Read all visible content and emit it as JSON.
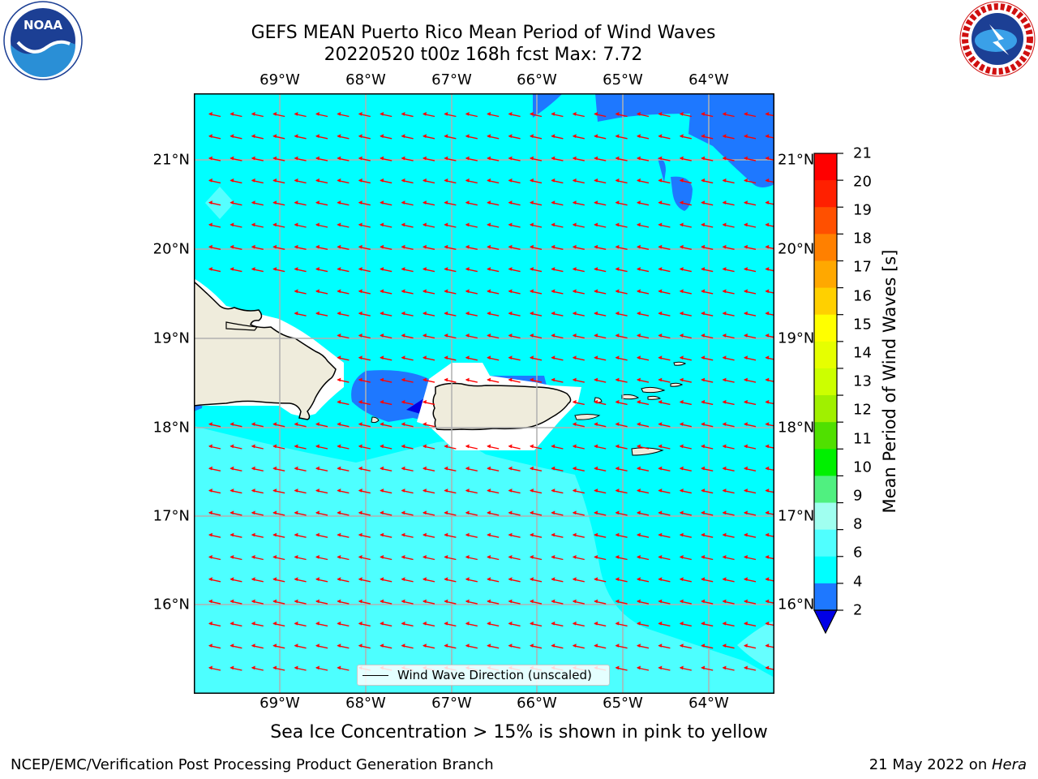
{
  "title": {
    "line1": "GEFS MEAN Puerto Rico Mean Period of Wind Waves",
    "line2": "20220520 t00z 168h fcst   Max: 7.72"
  },
  "map": {
    "lon_ticks": [
      "69°W",
      "68°W",
      "67°W",
      "66°W",
      "65°W",
      "64°W"
    ],
    "lat_ticks": [
      "21°N",
      "20°N",
      "19°N",
      "18°N",
      "17°N",
      "16°N"
    ],
    "legend_label": "Wind Wave Direction (unscaled)",
    "arrow_color": "#ff0000",
    "land_color": "#efecdc"
  },
  "colorbar": {
    "label": "Mean Period of Wind Waves [s]",
    "ticks": [
      "21",
      "20",
      "19",
      "18",
      "17",
      "16",
      "15",
      "14",
      "13",
      "12",
      "11",
      "10",
      "9",
      "8",
      "6",
      "4",
      "2"
    ],
    "colors": [
      "#ff0000",
      "#ff2000",
      "#ff5000",
      "#ff8000",
      "#ffa800",
      "#ffd000",
      "#ffff00",
      "#e6ff00",
      "#ccff00",
      "#a0f000",
      "#50e000",
      "#00f000",
      "#50f080",
      "#a0fff0",
      "#50ffff",
      "#00ffff",
      "#1e78ff"
    ],
    "extend_color": "#0000e6"
  },
  "subtitle": "Sea Ice Concentration > 15% is shown in pink to yellow",
  "footer": {
    "left": "NCEP/EMC/Verification Post Processing Product Generation Branch",
    "right_prefix": "21 May 2022 on ",
    "right_host": "Hera"
  },
  "logos": {
    "noaa_text": "NOAA",
    "nws_text": "NATIONAL WEATHER SERVICE"
  }
}
